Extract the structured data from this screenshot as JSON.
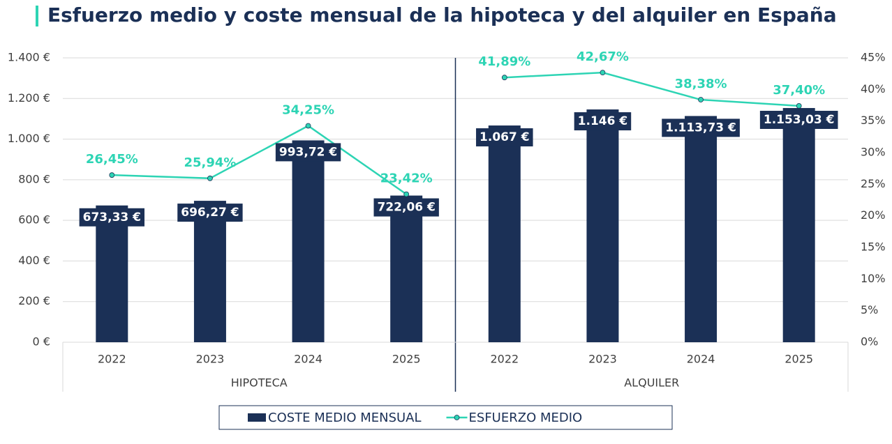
{
  "chart_data": {
    "type": "bar",
    "title": "Esfuerzo medio y coste mensual de la hipoteca y del alquiler en España",
    "groups": [
      {
        "name": "HIPOTECA",
        "categories": [
          "2022",
          "2023",
          "2024",
          "2025"
        ]
      },
      {
        "name": "ALQUILER",
        "categories": [
          "2022",
          "2023",
          "2024",
          "2025"
        ]
      }
    ],
    "series": [
      {
        "name": "COSTE MEDIO MENSUAL",
        "type": "bar",
        "color": "#1b3056",
        "values": [
          673.33,
          696.27,
          993.72,
          722.06,
          1067,
          1146,
          1113.73,
          1153.03
        ],
        "value_labels": [
          "673,33 €",
          "696,27 €",
          "993,72 €",
          "722,06 €",
          "1.067 €",
          "1.146 €",
          "1.113,73 €",
          "1.153,03 €"
        ]
      },
      {
        "name": "ESFUERZO MEDIO",
        "type": "line",
        "axis": "y2",
        "color": "#2dd4b4",
        "values": [
          26.45,
          25.94,
          34.25,
          23.42,
          41.89,
          42.67,
          38.38,
          37.4
        ],
        "value_labels": [
          "26,45%",
          "25,94%",
          "34,25%",
          "23,42%",
          "41,89%",
          "42,67%",
          "38,38%",
          "37,40%"
        ]
      }
    ],
    "ylim": [
      0,
      1400
    ],
    "yticks": [
      {
        "value": 0,
        "label": "0 €"
      },
      {
        "value": 200,
        "label": "200 €"
      },
      {
        "value": 400,
        "label": "400 €"
      },
      {
        "value": 600,
        "label": "600 €"
      },
      {
        "value": 800,
        "label": "800 €"
      },
      {
        "value": 1000,
        "label": "1.000 €"
      },
      {
        "value": 1200,
        "label": "1.200 €"
      },
      {
        "value": 1400,
        "label": "1.400 €"
      }
    ],
    "y2lim": [
      0,
      45
    ],
    "y2ticks": [
      {
        "value": 0,
        "label": "0%"
      },
      {
        "value": 5,
        "label": "5%"
      },
      {
        "value": 10,
        "label": "10%"
      },
      {
        "value": 15,
        "label": "15%"
      },
      {
        "value": 20,
        "label": "20%"
      },
      {
        "value": 25,
        "label": "25%"
      },
      {
        "value": 30,
        "label": "30%"
      },
      {
        "value": 35,
        "label": "35%"
      },
      {
        "value": 40,
        "label": "40%"
      },
      {
        "value": 45,
        "label": "45%"
      }
    ],
    "grid": true,
    "legend": "bottom"
  }
}
